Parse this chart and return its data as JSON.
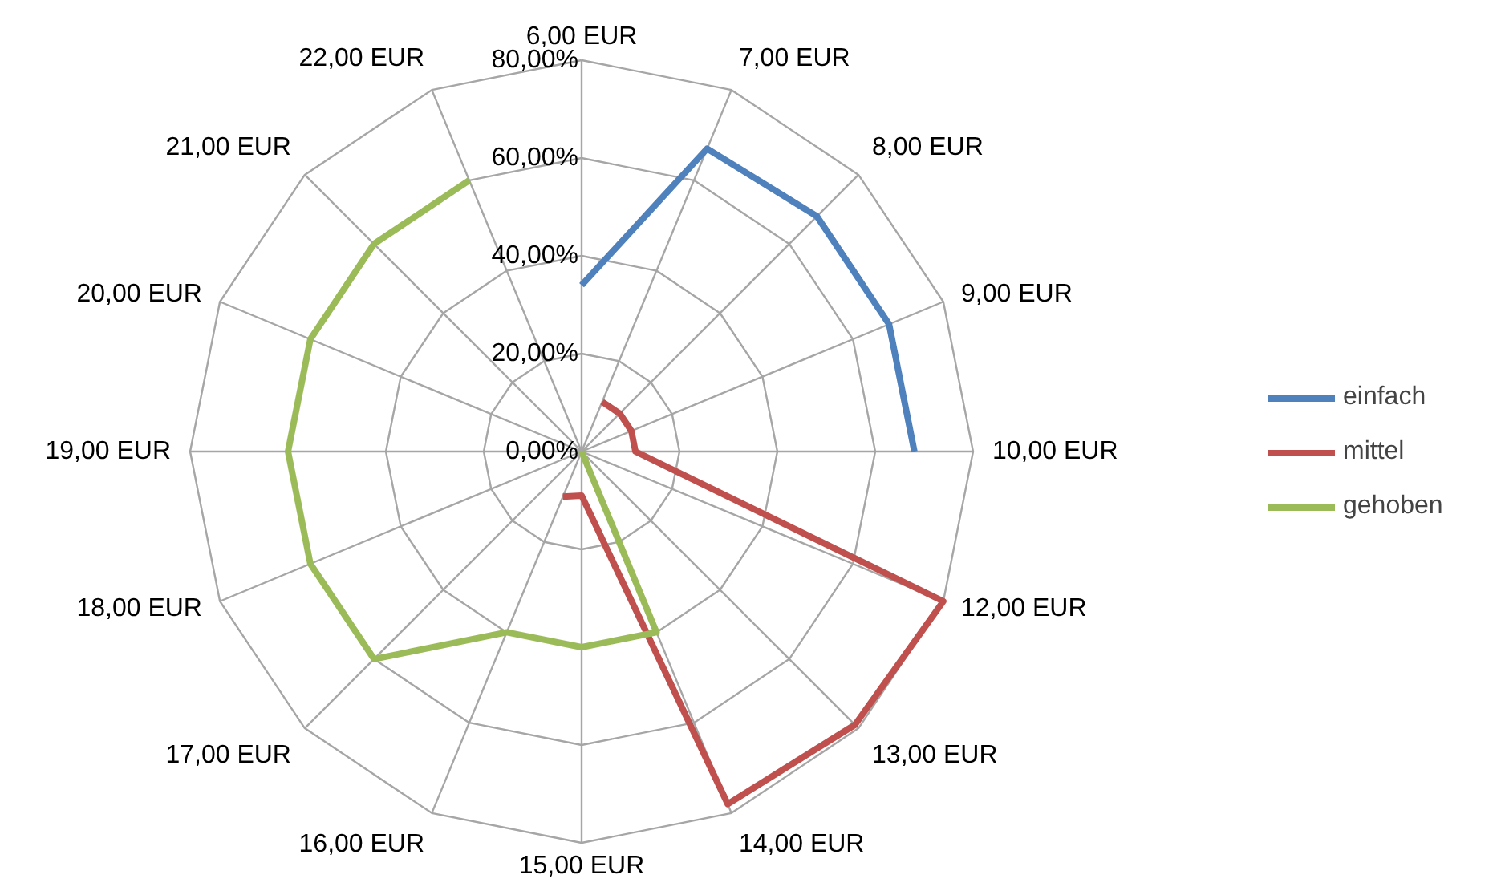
{
  "chart_data": {
    "type": "radar",
    "categories": [
      "6,00 EUR",
      "7,00 EUR",
      "8,00 EUR",
      "9,00 EUR",
      "10,00 EUR",
      "12,00 EUR",
      "13,00 EUR",
      "14,00 EUR",
      "15,00 EUR",
      "16,00 EUR",
      "17,00 EUR",
      "18,00 EUR",
      "19,00 EUR",
      "20,00 EUR",
      "21,00 EUR",
      "22,00 EUR"
    ],
    "series": [
      {
        "name": "einfach",
        "color": "#4f81bd",
        "values": [
          34,
          67,
          68,
          68,
          68,
          null,
          null,
          null,
          null,
          null,
          null,
          null,
          null,
          null,
          null,
          null
        ]
      },
      {
        "name": "mittel",
        "color": "#c0504d",
        "values": [
          null,
          11,
          11,
          11,
          11,
          80,
          79,
          78,
          9,
          10,
          null,
          null,
          null,
          null,
          null,
          null
        ]
      },
      {
        "name": "gehoben",
        "color": "#9bbb59",
        "values": [
          null,
          null,
          null,
          null,
          null,
          null,
          0,
          40,
          40,
          40,
          60,
          60,
          60,
          60,
          60,
          60
        ]
      }
    ],
    "ylim": [
      0,
      80
    ],
    "yticks": [
      {
        "value": 0,
        "label": "0,00%"
      },
      {
        "value": 20,
        "label": "20,00%"
      },
      {
        "value": 40,
        "label": "40,00%"
      },
      {
        "value": 60,
        "label": "60,00%"
      },
      {
        "value": 80,
        "label": "80,00%"
      }
    ],
    "legend": "right"
  }
}
